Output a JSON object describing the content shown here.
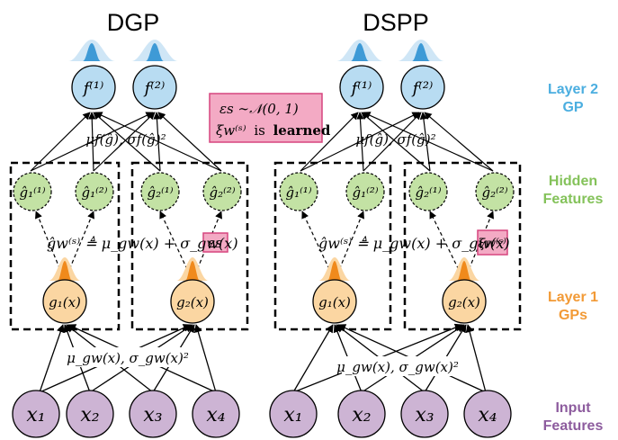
{
  "columns": [
    {
      "title": "DGP",
      "input_nodes": [
        "x₁",
        "x₂",
        "x₃",
        "x₄"
      ],
      "layer1_nodes": [
        "g₁(x)",
        "g₂(x)"
      ],
      "hidden_nodes": [
        "ĝ₁⁽¹⁾",
        "ĝ₁⁽²⁾",
        "ĝ₂⁽¹⁾",
        "ĝ₂⁽²⁾"
      ],
      "output_nodes": [
        "f⁽¹⁾",
        "f⁽²⁾"
      ],
      "input_edge_label": "μ_gw(x), σ_gw(x)²",
      "sampling_lhs": "ĝw⁽ˢ⁾ ≜ μ_gw(x) + σ_gw(x)",
      "sampling_noise": "εs",
      "hidden_edge_label": "μf(ĝ), σf(ĝ)²"
    },
    {
      "title": "DSPP",
      "input_nodes": [
        "x₁",
        "x₂",
        "x₃",
        "x₄"
      ],
      "layer1_nodes": [
        "g₁(x)",
        "g₂(x)"
      ],
      "hidden_nodes": [
        "ĝ₁⁽¹⁾",
        "ĝ₁⁽²⁾",
        "ĝ₂⁽¹⁾",
        "ĝ₂⁽²⁾"
      ],
      "output_nodes": [
        "f⁽¹⁾",
        "f⁽²⁾"
      ],
      "input_edge_label": "μ_gw(x), σ_gw(x)²",
      "sampling_lhs": "ĝw⁽ˢ⁾ ≜ μ_gw(x) + σ_gw(x)",
      "sampling_noise": "ξw⁽ˢ⁾",
      "hidden_edge_label": "μf(ĝ), σf(ĝ)²"
    }
  ],
  "legend_box": {
    "line1": "εs ∼𝒩(0, 1)",
    "line2_math": "ξw⁽ˢ⁾",
    "line2_is": "is",
    "line2_bold": "learned"
  },
  "row_labels": {
    "layer2": [
      "Layer 2",
      "GP"
    ],
    "hidden": [
      "Hidden",
      "Features"
    ],
    "layer1": [
      "Layer 1",
      "GPs"
    ],
    "input": [
      "Input",
      "Features"
    ]
  },
  "colors": {
    "input_fill": "#cdb4d4",
    "input_label": "#8d5c9e",
    "layer1_fill": "#fbd6a2",
    "layer1_label": "#f29a36",
    "hidden_fill": "#c3e2a4",
    "hidden_label": "#84c25a",
    "output_fill": "#b8dcf2",
    "output_label": "#4baee0",
    "noise_box": "#f3aac4",
    "noise_border": "#d6457f",
    "orange_dist": "#f08a1c",
    "blue_dist": "#3e9ad6"
  }
}
